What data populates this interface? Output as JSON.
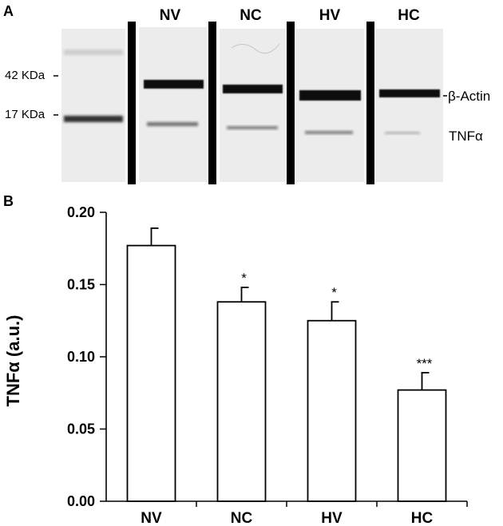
{
  "blot": {
    "panel_label": "A",
    "lanes": [
      "NV",
      "NC",
      "HV",
      "HC"
    ],
    "markers": [
      "42 KDa",
      "17 KDa"
    ],
    "bands": [
      "β-Actin",
      "TNFα"
    ]
  },
  "chart_data": {
    "panel_label": "B",
    "type": "bar",
    "categories": [
      "NV",
      "NC",
      "HV",
      "HC"
    ],
    "values": [
      0.177,
      0.138,
      0.125,
      0.077
    ],
    "errors": [
      0.012,
      0.01,
      0.013,
      0.012
    ],
    "significance": [
      "",
      "*",
      "*",
      "***"
    ],
    "ylabel": "TNFα (a.u.)",
    "xlabel": "",
    "ylim": [
      0,
      0.2
    ],
    "yticks": [
      "0.00",
      "0.05",
      "0.10",
      "0.15",
      "0.20"
    ],
    "grid": false,
    "bar_fill": "#ffffff",
    "bar_stroke": "#000000"
  }
}
